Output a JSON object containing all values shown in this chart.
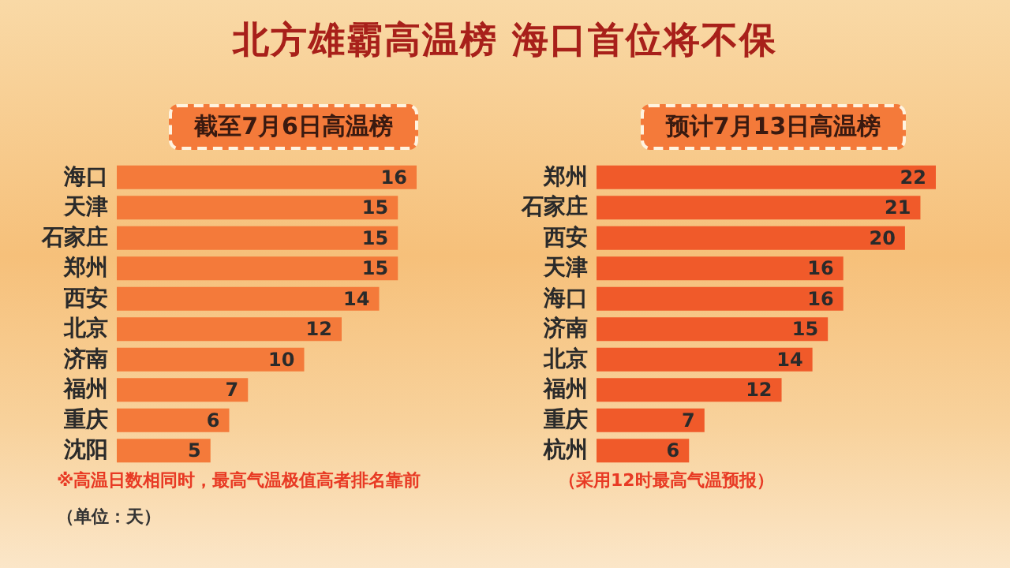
{
  "chart_data": [
    {
      "type": "bar",
      "orientation": "horizontal",
      "title": "北方雄霸高温榜 海口首位将不保",
      "subtitle": "截至7月6日高温榜",
      "categories": [
        "海口",
        "天津",
        "石家庄",
        "郑州",
        "西安",
        "北京",
        "济南",
        "福州",
        "重庆",
        "沈阳"
      ],
      "values": [
        16,
        15,
        15,
        15,
        14,
        12,
        10,
        7,
        6,
        5
      ],
      "color": "#f47a3a",
      "data_labels": true,
      "annotations": [
        "※高温日数相同时，最高气温极值高者排名靠前",
        "（单位：天）"
      ]
    },
    {
      "type": "bar",
      "orientation": "horizontal",
      "subtitle": "预计7月13日高温榜",
      "categories": [
        "郑州",
        "石家庄",
        "西安",
        "天津",
        "海口",
        "济南",
        "北京",
        "福州",
        "重庆",
        "杭州"
      ],
      "values": [
        22,
        21,
        20,
        16,
        16,
        15,
        14,
        12,
        7,
        6
      ],
      "color": "#f05a2a",
      "data_labels": true,
      "annotations": [
        "（采用12时最高气温预报）"
      ]
    }
  ]
}
